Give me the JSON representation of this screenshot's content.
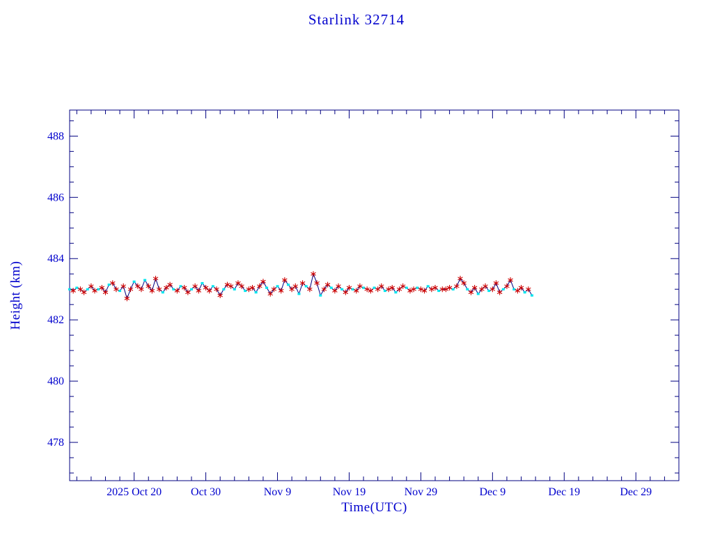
{
  "page": {
    "background": "#ffffff"
  },
  "chart_data": {
    "type": "line",
    "title": "Starlink 32714",
    "xlabel": "Time(UTC)",
    "ylabel": "Height (km)",
    "x_domain_days": [
      0,
      85
    ],
    "x_ticks": [
      {
        "day": 9,
        "label": "2025 Oct 20"
      },
      {
        "day": 19,
        "label": "Oct 30"
      },
      {
        "day": 29,
        "label": "Nov 9"
      },
      {
        "day": 39,
        "label": "Nov 19"
      },
      {
        "day": 49,
        "label": "Nov 29"
      },
      {
        "day": 59,
        "label": "Dec 9"
      },
      {
        "day": 69,
        "label": "Dec 19"
      },
      {
        "day": 79,
        "label": "Dec 29"
      }
    ],
    "ylim": [
      476.75,
      488.85
    ],
    "y_ticks": [
      478,
      480,
      482,
      484,
      486,
      488
    ],
    "y_minor_step": 0.5,
    "x_minor_step": 2,
    "legend": "none",
    "grid": false,
    "colors": {
      "text": "#0000cd",
      "axis": "#000080",
      "line": "#000080",
      "marker_red_asterisk": "#cc0000",
      "marker_cyan_square": "#00e5ee"
    },
    "points": {
      "t_start": 0,
      "t_step": 0.5,
      "heights": [
        483.0,
        482.95,
        483.05,
        483.0,
        482.9,
        483.0,
        483.1,
        482.95,
        483.0,
        483.05,
        482.9,
        483.15,
        483.2,
        483.0,
        482.95,
        483.1,
        482.7,
        483.0,
        483.25,
        483.1,
        483.0,
        483.3,
        483.1,
        482.95,
        483.35,
        483.0,
        482.9,
        483.05,
        483.15,
        483.0,
        482.95,
        483.1,
        483.05,
        482.9,
        483.0,
        483.1,
        482.95,
        483.2,
        483.05,
        482.95,
        483.1,
        483.0,
        482.8,
        483.0,
        483.15,
        483.1,
        483.0,
        483.2,
        483.1,
        482.95,
        483.0,
        483.05,
        482.9,
        483.1,
        483.25,
        483.05,
        482.85,
        483.0,
        483.1,
        482.95,
        483.3,
        483.15,
        483.0,
        483.1,
        482.85,
        483.2,
        483.1,
        483.0,
        483.5,
        483.2,
        482.8,
        483.0,
        483.15,
        483.05,
        482.95,
        483.1,
        483.0,
        482.9,
        483.05,
        483.0,
        482.95,
        483.1,
        483.05,
        483.0,
        482.95,
        483.05,
        483.0,
        483.1,
        482.95,
        483.0,
        483.05,
        482.9,
        483.0,
        483.1,
        483.05,
        482.95,
        483.0,
        483.05,
        483.0,
        482.95,
        483.1,
        483.0,
        483.05,
        482.95,
        483.0,
        483.0,
        483.05,
        483.0,
        483.1,
        483.35,
        483.2,
        483.0,
        482.9,
        483.05,
        482.85,
        483.0,
        483.1,
        482.95,
        483.0,
        483.2,
        482.9,
        483.0,
        483.1,
        483.3,
        483.0,
        482.95,
        483.05,
        482.9,
        483.0,
        482.8
      ],
      "cyan_indices": [
        0,
        2,
        5,
        8,
        11,
        14,
        18,
        21,
        26,
        29,
        31,
        34,
        37,
        40,
        43,
        46,
        49,
        52,
        55,
        58,
        61,
        64,
        66,
        70,
        73,
        76,
        79,
        82,
        85,
        88,
        91,
        94,
        97,
        100,
        103,
        107,
        111,
        114,
        117,
        121,
        124,
        127,
        129
      ]
    }
  }
}
